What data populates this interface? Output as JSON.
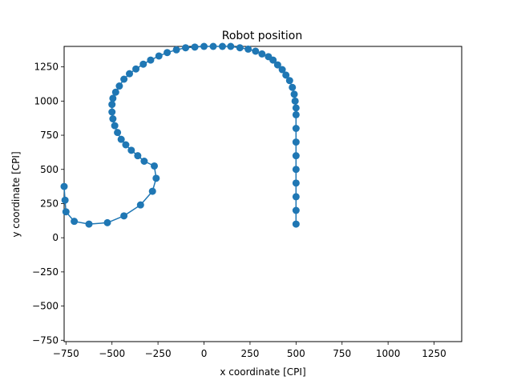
{
  "chart_data": {
    "type": "line",
    "title": "Robot position",
    "xlabel": "x coordinate [CPI]",
    "ylabel": "y coordinate [CPI]",
    "xlim": [
      -760,
      1400
    ],
    "ylim": [
      -760,
      1400
    ],
    "xticks": [
      -750,
      -500,
      -250,
      0,
      250,
      500,
      750,
      1000,
      1250
    ],
    "yticks": [
      -750,
      -500,
      -250,
      0,
      250,
      500,
      750,
      1000,
      1250
    ],
    "grid": false,
    "color": "#1f77b4",
    "series": [
      {
        "markers": true,
        "x": [
          500,
          500,
          500,
          500,
          500,
          500,
          500,
          500,
          500,
          500,
          495,
          490,
          480,
          465,
          445,
          425,
          400,
          375,
          350,
          315,
          280,
          240,
          195,
          145,
          100,
          50,
          0,
          -50,
          -100,
          -150,
          -200,
          -245,
          -290,
          -330,
          -370,
          -405,
          -435,
          -460,
          -480,
          -495,
          -500,
          -500,
          -495,
          -485,
          -470,
          -450,
          -425,
          -395,
          -360,
          -325,
          -270,
          -260,
          -280,
          -345,
          -435,
          -525,
          -625,
          -705,
          -750,
          -755,
          -760
        ],
        "y": [
          100,
          200,
          300,
          400,
          500,
          600,
          700,
          800,
          900,
          950,
          1000,
          1050,
          1100,
          1150,
          1190,
          1230,
          1265,
          1300,
          1325,
          1345,
          1365,
          1380,
          1390,
          1400,
          1400,
          1400,
          1400,
          1395,
          1390,
          1375,
          1355,
          1330,
          1300,
          1270,
          1235,
          1200,
          1160,
          1110,
          1065,
          1020,
          975,
          920,
          870,
          820,
          770,
          720,
          680,
          640,
          600,
          560,
          525,
          435,
          340,
          240,
          160,
          110,
          100,
          120,
          190,
          275,
          375
        ]
      }
    ]
  }
}
